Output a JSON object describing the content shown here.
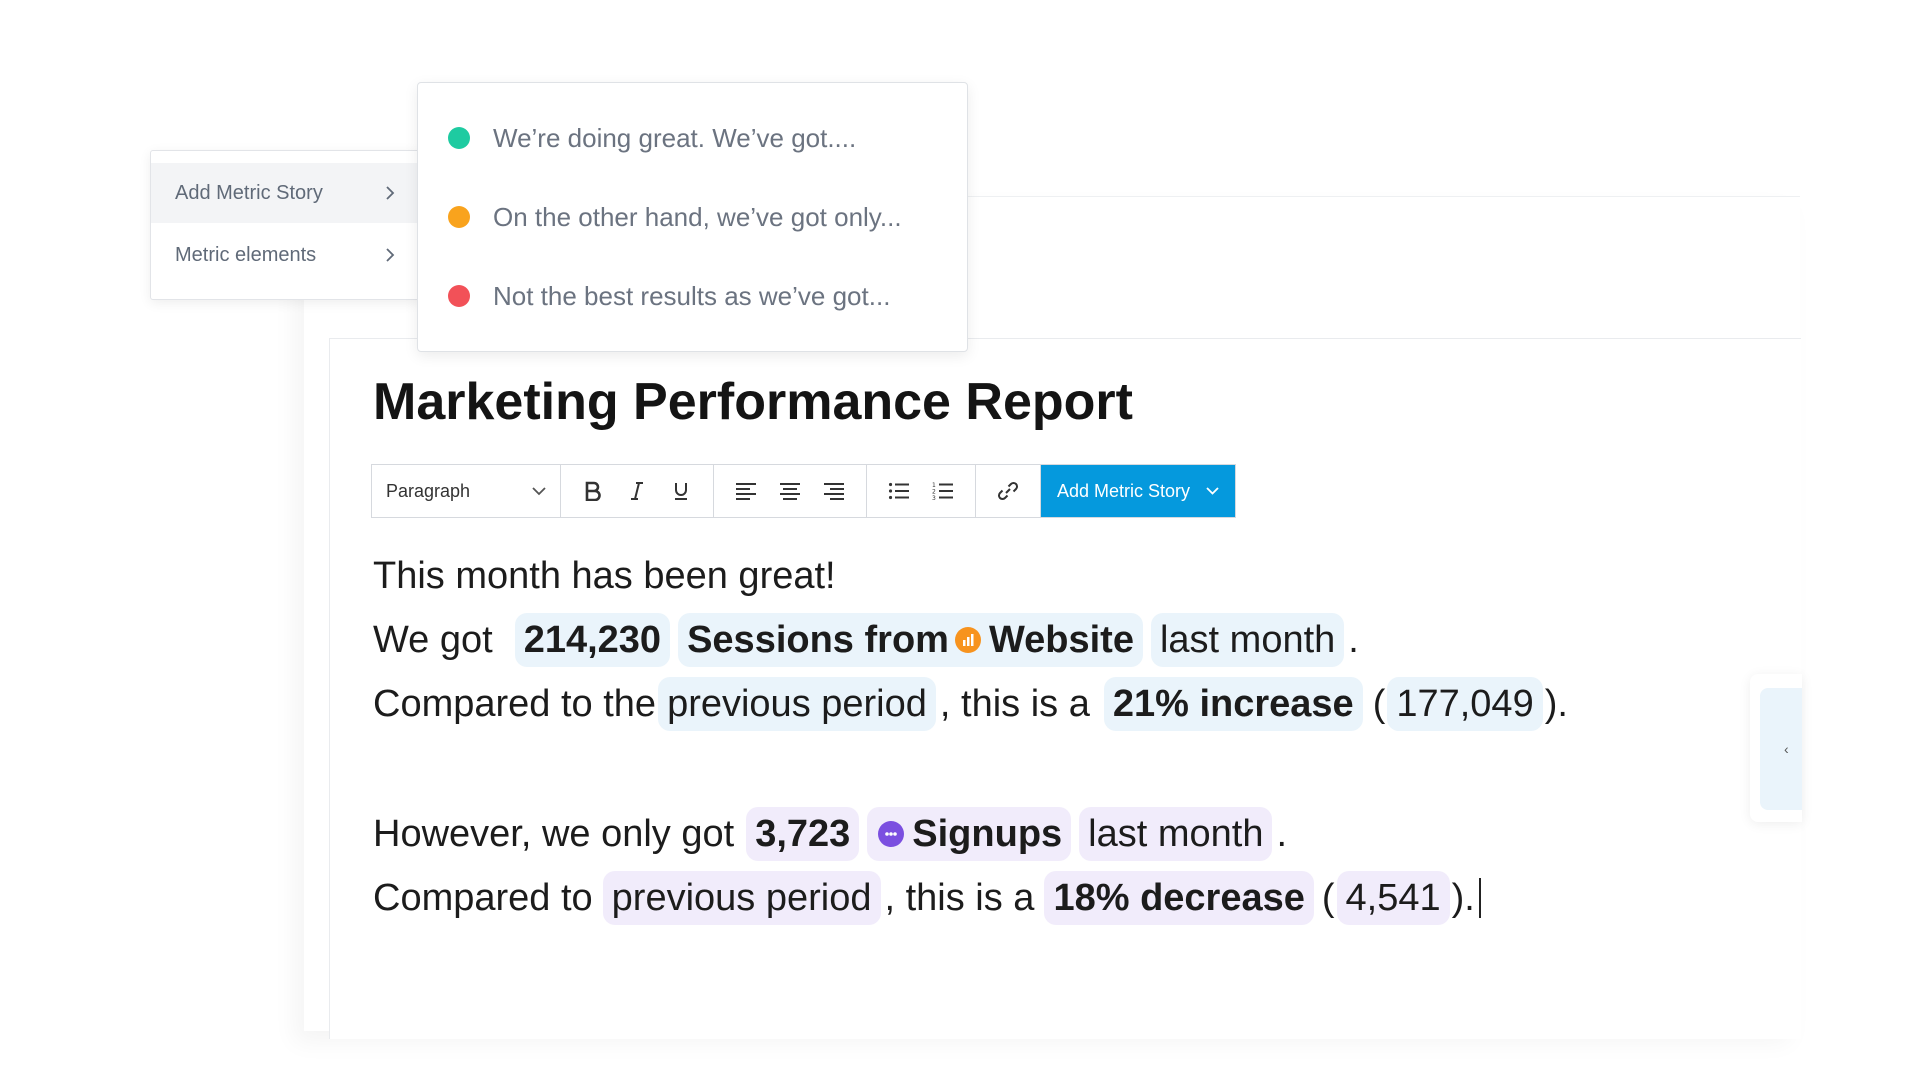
{
  "menu": {
    "items": [
      {
        "label": "Add Metric Story"
      },
      {
        "label": "Metric elements"
      }
    ]
  },
  "submenu": {
    "items": [
      {
        "label": "We’re doing great. We’ve got....",
        "color": "#1ecba1"
      },
      {
        "label": "On the other hand, we’ve got only...",
        "color": "#f9a31d"
      },
      {
        "label": "Not the best results as we’ve got...",
        "color": "#f25158"
      }
    ]
  },
  "document": {
    "title": "Marketing Performance Report"
  },
  "toolbar": {
    "paragraph_select": "Paragraph",
    "add_metric_story": "Add Metric Story",
    "icons": [
      "bold-icon",
      "italic-icon",
      "underline-icon",
      "align-left-icon",
      "align-center-icon",
      "align-right-icon",
      "bulleted-list-icon",
      "numbered-list-icon",
      "link-icon",
      "chevron-down-icon"
    ]
  },
  "content": {
    "line1": "This month has been great!",
    "line2": {
      "prefix": "We got",
      "value": "214,230",
      "metric_prefix": "Sessions from",
      "source": "Website",
      "period": "last month",
      "end": "."
    },
    "line3": {
      "prefix": "Compared to the",
      "period": "previous period",
      "middle": ", this is a",
      "change": "21% increase",
      "open": "(",
      "prev_value": "177,049",
      "close": ")."
    },
    "line4": {
      "prefix": "However, we only got",
      "value": "3,723",
      "metric": "Signups",
      "period": "last month",
      "end": "."
    },
    "line5": {
      "prefix": "Compared to",
      "period": "previous period",
      "middle": ", this is a",
      "change": "18% decrease",
      "open": "(",
      "prev_value": "4,541",
      "close": ")."
    }
  },
  "colors": {
    "accent": "#0599dd",
    "chip_blue": "#eaf4fb",
    "chip_purple": "#f1ecfb",
    "website_icon": "#f7931e",
    "signups_icon": "#7b4fe0"
  }
}
